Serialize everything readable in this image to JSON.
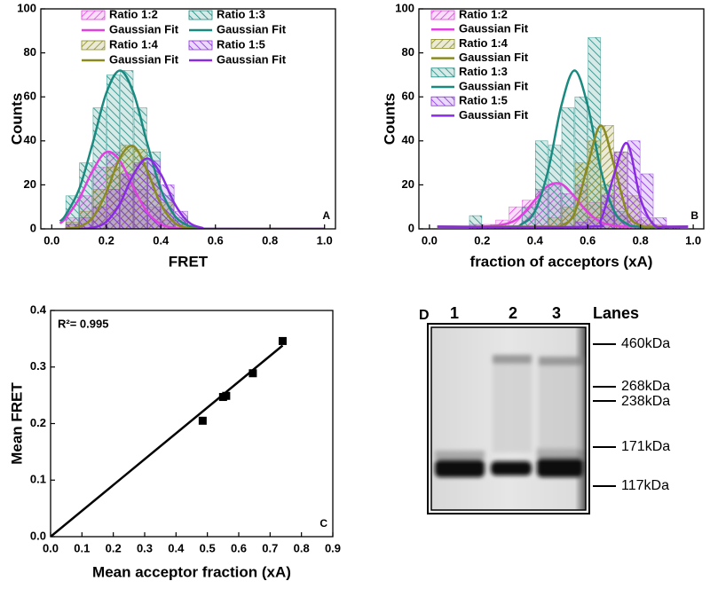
{
  "chart_data": [
    {
      "type": "histogram",
      "xlabel": "FRET",
      "ylabel": "Counts",
      "annotation": "A",
      "xlim": [
        -0.04,
        1.04
      ],
      "ylim": [
        0,
        100
      ],
      "xticks": [
        {
          "value": 0,
          "label": "0.0"
        },
        0.2,
        0.4,
        0.6,
        0.8,
        {
          "value": 1,
          "label": "1.0"
        }
      ],
      "yticks": [
        0,
        20,
        40,
        60,
        80,
        100
      ],
      "bins": [
        0.05,
        0.1,
        0.15,
        0.2,
        0.25,
        0.3,
        0.35,
        0.4,
        0.45,
        0.5
      ],
      "series": [
        {
          "name": "Ratio 1:2",
          "color": "#e040e0",
          "values": [
            5,
            15,
            28,
            35,
            25,
            18,
            10,
            4,
            2
          ]
        },
        {
          "name": "Ratio 1:3",
          "color": "#1a8a80",
          "values": [
            15,
            30,
            55,
            70,
            72,
            55,
            35,
            15,
            5
          ]
        },
        {
          "name": "Ratio 1:4",
          "color": "#8a8a20",
          "values": [
            3,
            8,
            18,
            28,
            38,
            36,
            25,
            12,
            4
          ]
        },
        {
          "name": "Ratio 1:5",
          "color": "#8a2be2",
          "values": [
            2,
            5,
            10,
            18,
            25,
            30,
            31,
            20,
            8
          ]
        }
      ],
      "fits": [
        {
          "name": "Gaussian Fit",
          "color": "#e040e0",
          "x": [
            0.03,
            0.05,
            0.1,
            0.15,
            0.2,
            0.25,
            0.3,
            0.35,
            0.4,
            0.45,
            0.5,
            0.55,
            0.6,
            1.0
          ],
          "values": [
            2.5,
            4.7,
            13.6,
            26.4,
            34.9,
            30.9,
            18.6,
            7.6,
            2.1,
            0.4,
            0,
            0,
            0,
            0
          ]
        },
        {
          "name": "Gaussian Fit",
          "color": "#1a8a80",
          "x": [
            0.03,
            0.05,
            0.1,
            0.15,
            0.2,
            0.25,
            0.3,
            0.35,
            0.4,
            0.45,
            0.5,
            0.55,
            0.6,
            1.0
          ],
          "values": [
            3.5,
            6.1,
            17.9,
            38.9,
            61.7,
            72,
            61.7,
            38.9,
            17.9,
            6.1,
            1.5,
            0.3,
            0,
            0
          ]
        },
        {
          "name": "Gaussian Fit",
          "color": "#8a8a20",
          "x": [
            0.05,
            0.1,
            0.15,
            0.2,
            0.25,
            0.3,
            0.35,
            0.4,
            0.45,
            0.5,
            0.55,
            0.6,
            1.0
          ],
          "values": [
            0.1,
            1.0,
            5.1,
            16.6,
            32.3,
            37.6,
            26.3,
            11.1,
            2.8,
            0.4,
            0,
            0,
            0
          ]
        },
        {
          "name": "Gaussian Fit",
          "color": "#8a2be2",
          "x": [
            0.1,
            0.15,
            0.2,
            0.25,
            0.3,
            0.35,
            0.4,
            0.45,
            0.5,
            0.55,
            0.6,
            1.0
          ],
          "values": [
            0,
            0.5,
            3.2,
            11.5,
            24.8,
            32,
            24.8,
            11.5,
            3.2,
            0.5,
            0,
            0
          ]
        }
      ]
    },
    {
      "type": "histogram",
      "xlabel": "fraction of acceptors (xA)",
      "ylabel": "Counts",
      "annotation": "B",
      "xlim": [
        -0.04,
        1.04
      ],
      "ylim": [
        0,
        100
      ],
      "xticks": [
        {
          "value": 0,
          "label": "0.0"
        },
        0.2,
        0.4,
        0.6,
        0.8,
        {
          "value": 1,
          "label": "1.0"
        }
      ],
      "yticks": [
        0,
        20,
        40,
        60,
        80,
        100
      ],
      "bins": [
        0.15,
        0.2,
        0.25,
        0.3,
        0.35,
        0.4,
        0.45,
        0.5,
        0.55,
        0.6,
        0.65,
        0.7,
        0.75,
        0.8,
        0.85,
        0.9,
        0.95
      ],
      "series": [
        {
          "name": "Ratio 1:2",
          "color": "#e040e0",
          "values": [
            2,
            2,
            4,
            10,
            13,
            18,
            20,
            16,
            20,
            12,
            10,
            6,
            4,
            2,
            2,
            1
          ]
        },
        {
          "name": "Ratio 1:3",
          "color": "#1a8a80",
          "values": [
            6,
            0,
            0,
            0,
            10,
            40,
            38,
            55,
            60,
            87,
            20,
            8,
            0,
            0,
            0,
            0
          ]
        },
        {
          "name": "Ratio 1:4",
          "color": "#8a8a20",
          "values": [
            0,
            0,
            0,
            0,
            0,
            0,
            5,
            10,
            30,
            40,
            47,
            35,
            15,
            5,
            0,
            0
          ]
        },
        {
          "name": "Ratio 1:5",
          "color": "#8a2be2",
          "values": [
            0,
            0,
            0,
            0,
            0,
            0,
            0,
            0,
            3,
            5,
            15,
            35,
            40,
            25,
            5,
            1
          ]
        }
      ],
      "fits": [
        {
          "name": "Gaussian Fit",
          "color": "#e040e0",
          "x": [
            0.03,
            0.2,
            0.3,
            0.35,
            0.4,
            0.45,
            0.5,
            0.55,
            0.6,
            0.65,
            0.7,
            0.75,
            0.98
          ],
          "values": [
            1,
            1,
            2.6,
            6.3,
            13.1,
            19.6,
            20.4,
            14.6,
            7.5,
            3.1,
            1.5,
            1,
            1
          ]
        },
        {
          "name": "Gaussian Fit",
          "color": "#1a8a80",
          "x": [
            0.03,
            0.3,
            0.35,
            0.4,
            0.45,
            0.5,
            0.55,
            0.6,
            0.65,
            0.7,
            0.75,
            0.8,
            0.98
          ],
          "values": [
            1,
            1,
            2.2,
            8.1,
            26.6,
            56,
            72,
            56,
            26.6,
            8.1,
            2.2,
            1,
            1
          ]
        },
        {
          "name": "Gaussian Fit",
          "color": "#8a8a20",
          "x": [
            0.03,
            0.45,
            0.5,
            0.55,
            0.6,
            0.65,
            0.7,
            0.75,
            0.8,
            0.85,
            0.98
          ],
          "values": [
            1,
            1,
            1.5,
            7.2,
            28.9,
            47,
            28.9,
            7.2,
            1.5,
            1,
            1
          ]
        },
        {
          "name": "Gaussian Fit",
          "color": "#8a2be2",
          "x": [
            0.03,
            0.6,
            0.65,
            0.7,
            0.75,
            0.8,
            0.85,
            0.9,
            0.98
          ],
          "values": [
            1,
            1,
            4.1,
            24.7,
            38.8,
            13.7,
            1.9,
            1,
            1
          ]
        }
      ]
    },
    {
      "type": "scatter",
      "xlabel": "Mean acceptor fraction (xA)",
      "ylabel": "Mean FRET",
      "annotation": "C",
      "text": "R²= 0.995",
      "color": "#000000",
      "xlim": [
        0,
        0.9
      ],
      "ylim": [
        0,
        0.4
      ],
      "xticks": [
        {
          "value": 0,
          "label": "0.0"
        },
        0.1,
        0.2,
        0.3,
        0.4,
        0.5,
        0.6,
        0.7,
        0.8,
        0.9
      ],
      "yticks": [
        {
          "value": 0,
          "label": "0.0"
        },
        0.1,
        0.2,
        0.3,
        0.4
      ],
      "x": [
        0.485,
        0.55,
        0.56,
        0.645,
        0.74
      ],
      "values": [
        0.205,
        0.247,
        0.249,
        0.289,
        0.346
      ],
      "fit_line": {
        "x": [
          0,
          0.74
        ],
        "values": [
          0,
          0.338
        ]
      }
    }
  ],
  "gel": {
    "label": "D",
    "lanes_title": "Lanes",
    "lanes": [
      "1",
      "2",
      "3"
    ],
    "markers": [
      "460kDa",
      "268kDa",
      "238kDa",
      "171kDa",
      "117kDa"
    ]
  }
}
